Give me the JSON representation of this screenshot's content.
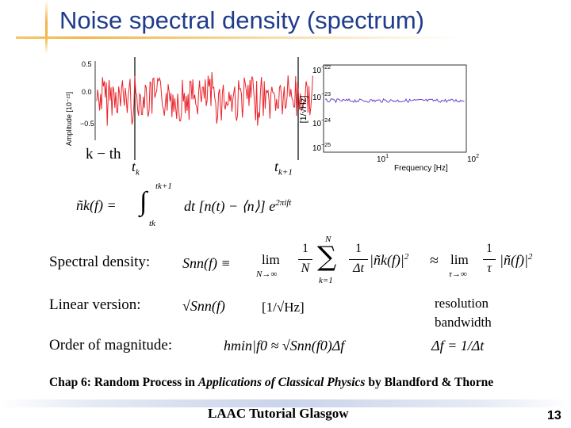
{
  "slide": {
    "title": "Noise spectral density (spectrum)",
    "page_number": "13",
    "footer": "LAAC Tutorial Glasgow"
  },
  "time_plot": {
    "ylabel": "Amplitude [10⁻²¹]",
    "yticks": [
      "0.5",
      "0.0",
      "−0.5"
    ],
    "segment_label": "k − th",
    "t_start": "t",
    "t_start_sub": "k",
    "t_end": "t",
    "t_end_sub": "k+1",
    "line_color": "#e8242b"
  },
  "spectrum_plot": {
    "ylabel": "[1/√Hz]",
    "xlabel": "Frequency [Hz]",
    "yticks": [
      {
        "base": "10",
        "exp": "−22"
      },
      {
        "base": "10",
        "exp": "−23"
      },
      {
        "base": "10",
        "exp": "−24"
      },
      {
        "base": "10",
        "exp": "−25"
      }
    ],
    "xticks": [
      {
        "base": "10",
        "exp": "1"
      },
      {
        "base": "10",
        "exp": "2"
      }
    ],
    "line_color": "#6b46c9"
  },
  "equations": {
    "fourier_lhs": "ñk(f) =",
    "fourier_upper": "tk+1",
    "fourier_lower": "tk",
    "fourier_integrand": "dt [n(t) − ⟨n⟩] e",
    "fourier_exponent": "2πift",
    "spectral_lhs": "Snn(f) ≡",
    "spectral_lim": "lim",
    "spectral_lim_sub": "N→∞",
    "spectral_frac1_num": "1",
    "spectral_frac1_den": "N",
    "spectral_sum_top": "N",
    "spectral_sum_bottom": "k=1",
    "spectral_frac2_num": "1",
    "spectral_frac2_den": "Δt",
    "spectral_term": "|ñk(f)|",
    "spectral_exp": "2",
    "spectral_approx": "≈",
    "spectral_lim2_sub": "τ→∞",
    "spectral_frac3_num": "1",
    "spectral_frac3_den": "τ",
    "spectral_term2": "|ñ(f)|",
    "linear_expr": "√Snn(f)",
    "linear_units": "[1/√Hz]",
    "order_expr": "hmin|f0 ≈ √Snn(f0)Δf",
    "bandwidth_expr": "Δf = 1/Δt"
  },
  "labels": {
    "spectral_density": "Spectral density:",
    "linear_version": "Linear version:",
    "order_of_magnitude": "Order of magnitude:",
    "resolution": "resolution",
    "bandwidth": "bandwidth"
  },
  "reference": {
    "prefix": "Chap 6: Random Process in ",
    "book": "Applications of Classical Physics",
    "suffix": " by Blandford & Thorne"
  }
}
